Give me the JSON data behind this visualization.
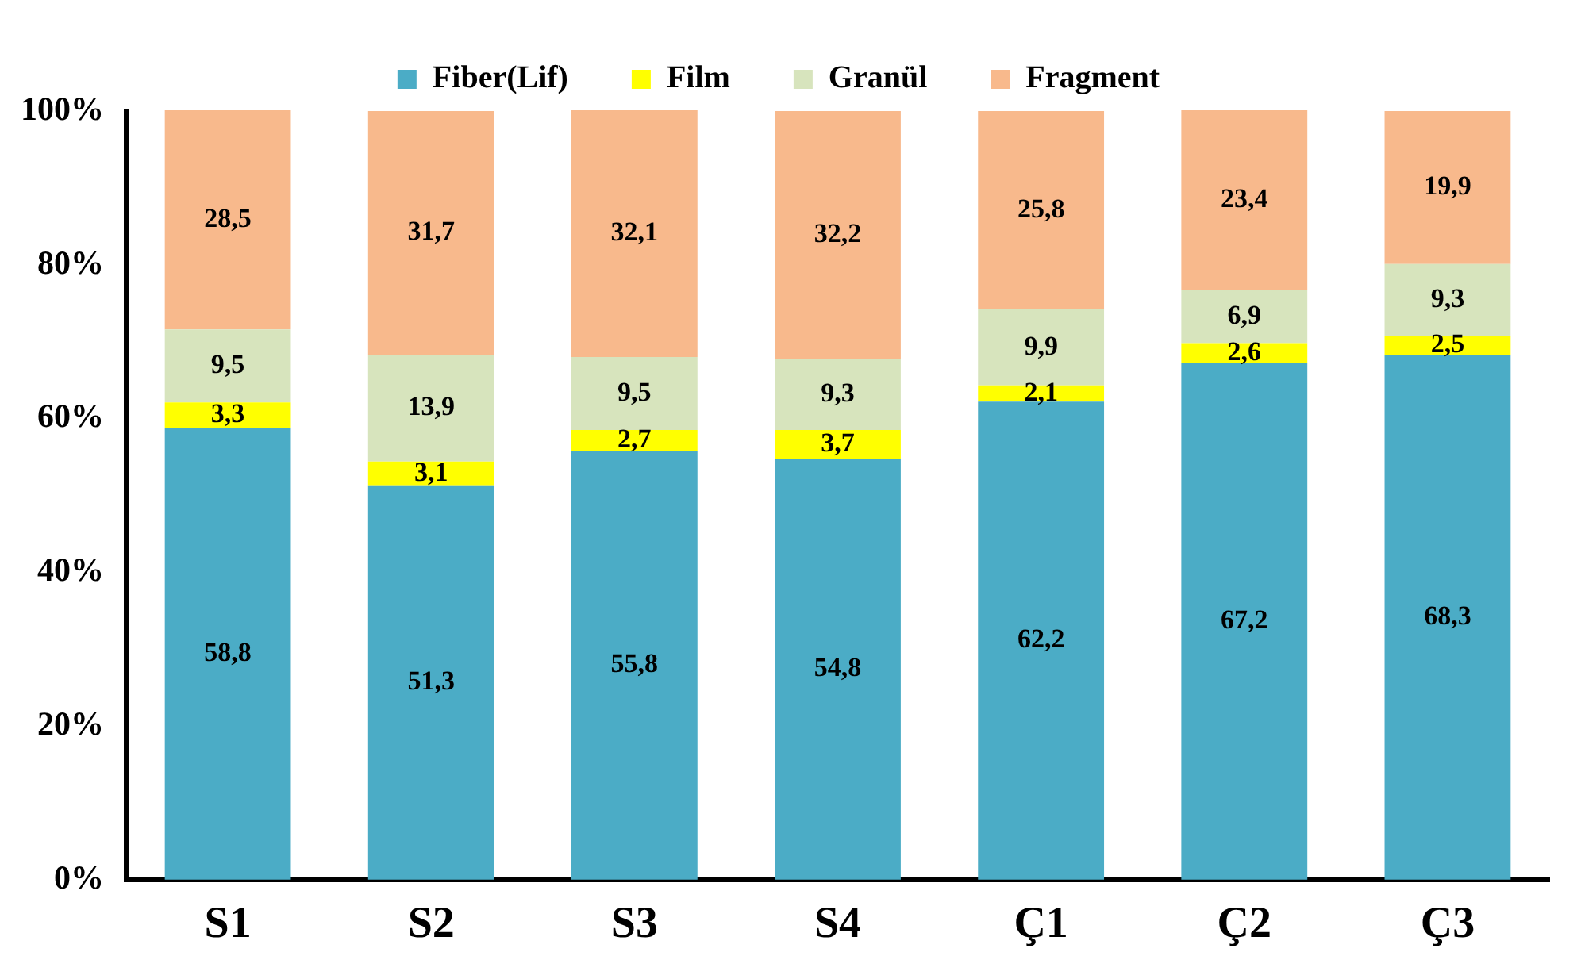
{
  "chart_data": {
    "type": "bar",
    "stacked": true,
    "categories": [
      "S1",
      "S2",
      "S3",
      "S4",
      "Ç1",
      "Ç2",
      "Ç3"
    ],
    "series": [
      {
        "name": "Fiber(Lif)",
        "color": "#4bacc6",
        "values": [
          58.8,
          51.3,
          55.8,
          54.8,
          62.2,
          67.2,
          68.3
        ],
        "value_labels": [
          "58,8",
          "51,3",
          "55,8",
          "54,8",
          "62,2",
          "67,2",
          "68,3"
        ]
      },
      {
        "name": "Film",
        "color": "#ffff00",
        "values": [
          3.3,
          3.1,
          2.7,
          3.7,
          2.1,
          2.6,
          2.5
        ],
        "value_labels": [
          "3,3",
          "3,1",
          "2,7",
          "3,7",
          "2,1",
          "2,6",
          "2,5"
        ]
      },
      {
        "name": "Granül",
        "color": "#d7e4bd",
        "values": [
          9.5,
          13.9,
          9.5,
          9.3,
          9.9,
          6.9,
          9.3
        ],
        "value_labels": [
          "9,5",
          "13,9",
          "9,5",
          "9,3",
          "9,9",
          "6,9",
          "9,3"
        ]
      },
      {
        "name": "Fragment",
        "color": "#f8b98c",
        "values": [
          28.5,
          31.7,
          32.1,
          32.2,
          25.8,
          23.4,
          19.9
        ],
        "value_labels": [
          "28,5",
          "31,7",
          "32,1",
          "32,2",
          "25,8",
          "23,4",
          "19,9"
        ]
      }
    ],
    "ylim": [
      0,
      100
    ],
    "yticks": [
      {
        "value": 0,
        "label": "0%"
      },
      {
        "value": 20,
        "label": "20%"
      },
      {
        "value": 40,
        "label": "40%"
      },
      {
        "value": 60,
        "label": "60%"
      },
      {
        "value": 80,
        "label": "80%"
      },
      {
        "value": 100,
        "label": "100%"
      }
    ],
    "grid": false,
    "legend": "top"
  }
}
